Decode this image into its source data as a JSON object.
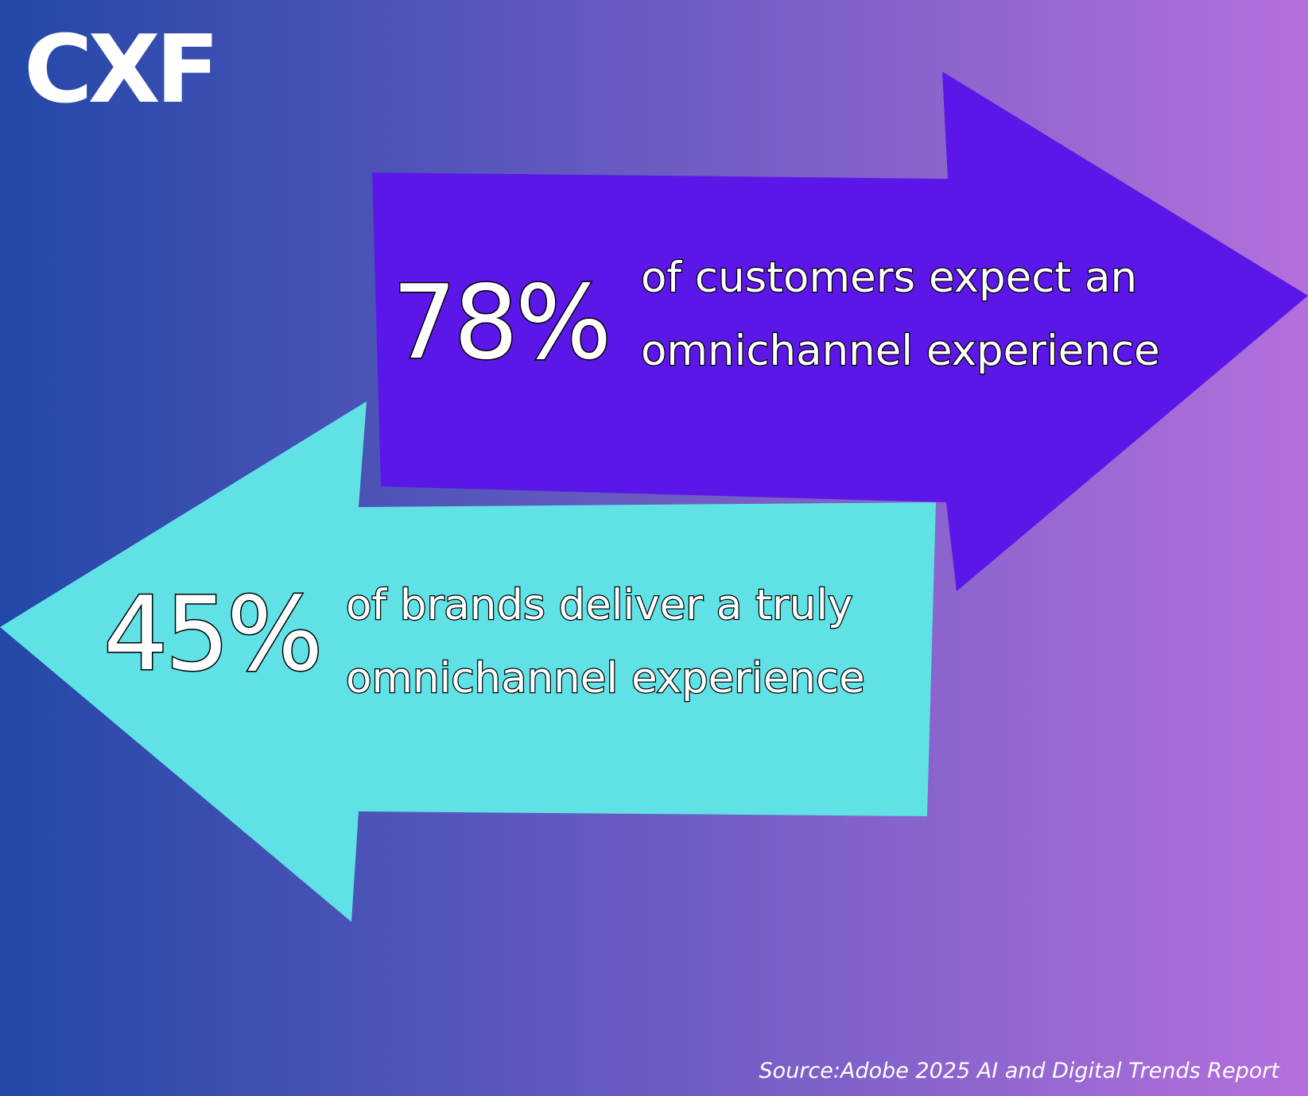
{
  "logo": {
    "text": "CXF",
    "color": "#ffffff"
  },
  "stats": [
    {
      "percent": "78%",
      "line1": "of customers expect an",
      "line2": "omnichannel experience",
      "arrow_direction": "right",
      "arrow_color": "#5b17e8"
    },
    {
      "percent": "45%",
      "line1": "of brands deliver a truly",
      "line2": "omnichannel experience",
      "arrow_direction": "left",
      "arrow_color": "#5fe1e6"
    }
  ],
  "source": "Source:Adobe 2025 AI and Digital Trends Report",
  "colors": {
    "gradient_left": "#2348a8",
    "gradient_right": "#b46fdc",
    "text_fill": "#ffffff",
    "text_outline": "#000000"
  }
}
